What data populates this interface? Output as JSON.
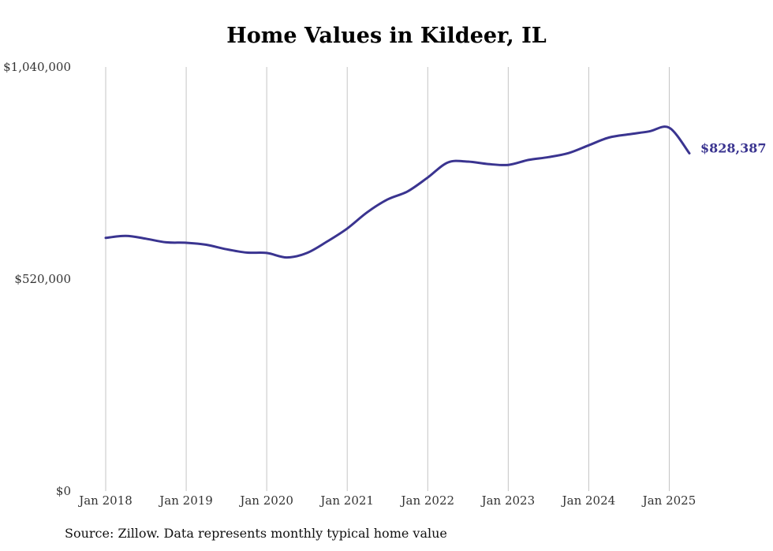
{
  "chart_data": {
    "type": "line",
    "title": "Home Values in Kildeer, IL",
    "source": "Source: Zillow. Data represents monthly typical home value",
    "ylim": [
      0,
      1040000
    ],
    "y_ticks": [
      {
        "value": 0,
        "label": "$0"
      },
      {
        "value": 520000,
        "label": "$520,000"
      },
      {
        "value": 1040000,
        "label": "$1,040,000"
      }
    ],
    "x_ticks": [
      {
        "value": 2018,
        "label": "Jan 2018"
      },
      {
        "value": 2019,
        "label": "Jan 2019"
      },
      {
        "value": 2020,
        "label": "Jan 2020"
      },
      {
        "value": 2021,
        "label": "Jan 2021"
      },
      {
        "value": 2022,
        "label": "Jan 2022"
      },
      {
        "value": 2023,
        "label": "Jan 2023"
      },
      {
        "value": 2024,
        "label": "Jan 2024"
      },
      {
        "value": 2025,
        "label": "Jan 2025"
      }
    ],
    "xlim": [
      2018,
      2025.25
    ],
    "grid": {
      "vertical": true,
      "horizontal": false
    },
    "end_label": "$828,387",
    "line_color": "#3a3490",
    "series": [
      {
        "x": [
          2018,
          2018.25,
          2018.5,
          2018.75,
          2019,
          2019.25,
          2019.5,
          2019.75,
          2020,
          2020.25,
          2020.5,
          2020.75,
          2021,
          2021.25,
          2021.5,
          2021.75,
          2022,
          2022.25,
          2022.5,
          2022.75,
          2023,
          2023.25,
          2023.5,
          2023.75,
          2024,
          2024.25,
          2024.5,
          2024.75,
          2025,
          2025.25
        ],
        "y": [
          621000,
          626000,
          619000,
          610000,
          609000,
          604000,
          593000,
          585000,
          584000,
          573000,
          584000,
          612000,
          644000,
          684000,
          715000,
          735000,
          769000,
          806000,
          808000,
          802000,
          800000,
          812000,
          819000,
          829000,
          848000,
          867000,
          875000,
          882000,
          891000,
          828387
        ]
      }
    ]
  }
}
